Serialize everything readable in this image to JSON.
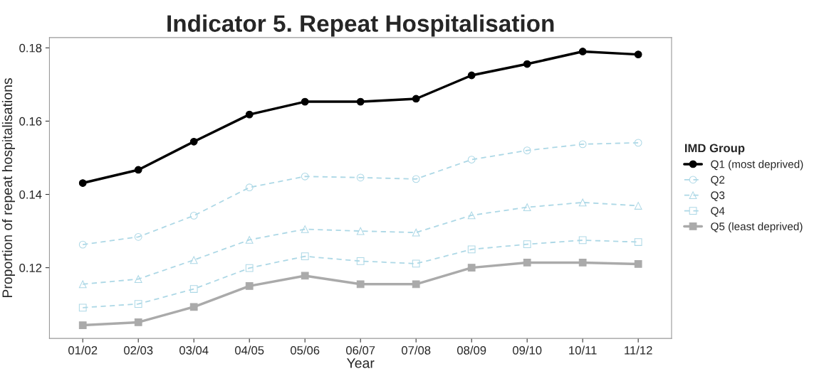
{
  "chart_data": {
    "type": "line",
    "title": "Indicator 5. Repeat Hospitalisation",
    "xlabel": "Year",
    "ylabel": "Proportion of repeat hospitalisations",
    "legend_title": "IMD Group",
    "legend": "right",
    "grid": false,
    "categories": [
      "01/02",
      "02/03",
      "03/04",
      "04/05",
      "05/06",
      "06/07",
      "07/08",
      "08/09",
      "09/10",
      "10/11",
      "11/12"
    ],
    "ylim": [
      0.1007,
      0.1828
    ],
    "yticks": [
      0.12,
      0.14,
      0.16,
      0.18
    ],
    "series": [
      {
        "name": "Q1 (most deprived)",
        "color": "#000000",
        "marker": "circle",
        "line_style": "solid",
        "values": [
          0.1431,
          0.1467,
          0.1544,
          0.1618,
          0.1653,
          0.1653,
          0.1661,
          0.1725,
          0.1756,
          0.179,
          0.1782
        ]
      },
      {
        "name": "Q2",
        "color": "#add8e6",
        "marker": "circle",
        "line_style": "dashed",
        "values": [
          0.1263,
          0.1284,
          0.1342,
          0.1419,
          0.1449,
          0.1446,
          0.1442,
          0.1495,
          0.152,
          0.1537,
          0.1541
        ]
      },
      {
        "name": "Q3",
        "color": "#add8e6",
        "marker": "triangle",
        "line_style": "dashed",
        "values": [
          0.1155,
          0.1169,
          0.1221,
          0.1276,
          0.1305,
          0.13,
          0.1296,
          0.1343,
          0.1365,
          0.1378,
          0.1369
        ]
      },
      {
        "name": "Q4",
        "color": "#add8e6",
        "marker": "square",
        "line_style": "dashed",
        "values": [
          0.1091,
          0.1101,
          0.1142,
          0.1199,
          0.1231,
          0.1218,
          0.1211,
          0.125,
          0.1264,
          0.1275,
          0.127
        ]
      },
      {
        "name": "Q5 (least deprived)",
        "color": "#aaaaaa",
        "marker": "square",
        "line_style": "solid",
        "values": [
          0.1043,
          0.1051,
          0.1093,
          0.115,
          0.1178,
          0.1155,
          0.1155,
          0.12,
          0.1214,
          0.1214,
          0.121
        ]
      }
    ]
  }
}
